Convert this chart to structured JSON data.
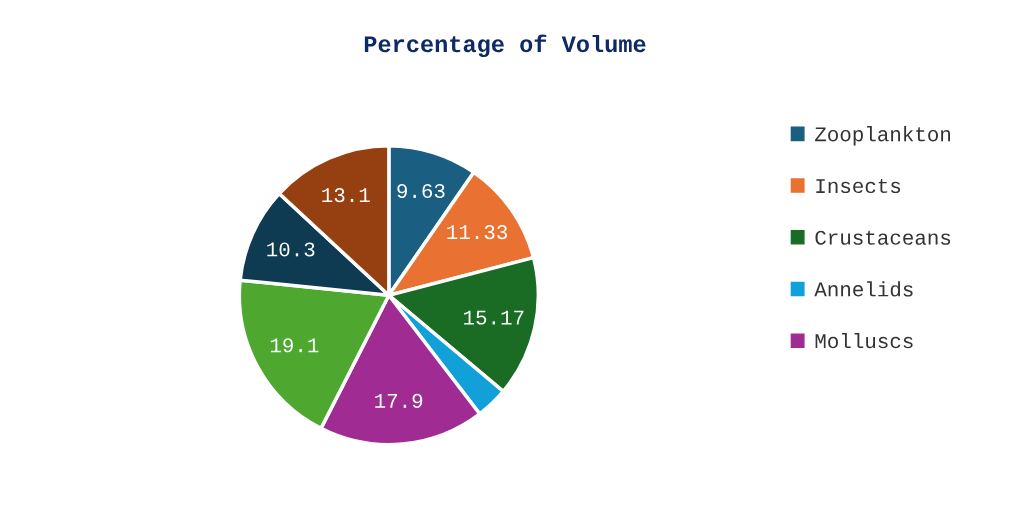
{
  "chart_data": {
    "type": "pie",
    "title": "Percentage of Volume",
    "categories": [
      "Zooplankton",
      "Insects",
      "Crustaceans",
      "Annelids",
      "Molluscs",
      null,
      null,
      null
    ],
    "values": [
      9.63,
      11.33,
      15.17,
      3.47,
      17.9,
      19.1,
      10.3,
      13.1
    ],
    "value_labels": [
      "9.63",
      "11.33",
      "15.17",
      null,
      "17.9",
      "19.1",
      "10.3",
      "13.1"
    ],
    "colors": [
      "#1a5f82",
      "#e97132",
      "#1a6b24",
      "#12a0d8",
      "#a02b93",
      "#4ea72e",
      "#0e3a52",
      "#963f10"
    ],
    "legend": "right"
  }
}
